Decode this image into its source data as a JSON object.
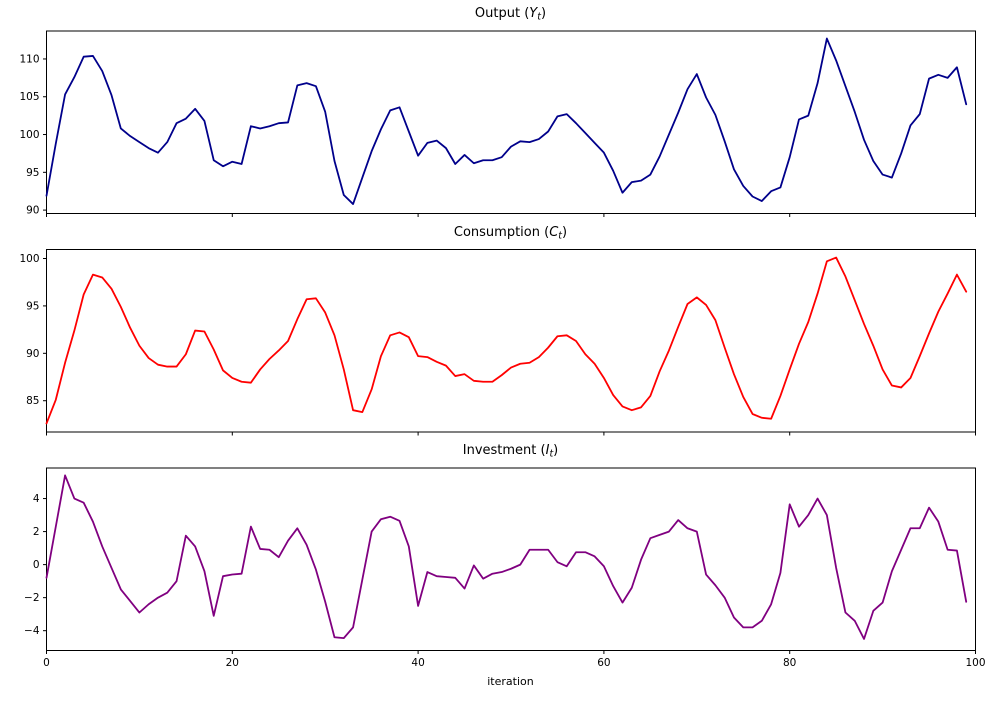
{
  "xlabel": "iteration",
  "chart_data": [
    {
      "type": "line",
      "title_pre": "Output (",
      "title_var": "Y",
      "title_sub": "t",
      "title_post": ")",
      "title_plain": "Output (Y_t)",
      "color": "#00008b",
      "xlim": [
        0,
        100
      ],
      "ylim": [
        89.55,
        113.7
      ],
      "xticks": [
        0,
        20,
        40,
        60,
        80,
        100
      ],
      "xtick_labels": [
        "0",
        "20",
        "40",
        "60",
        "80",
        "100"
      ],
      "show_xtick_labels": false,
      "yticks": [
        90,
        95,
        100,
        105,
        110
      ],
      "ytick_labels": [
        "90",
        "95",
        "100",
        "105",
        "110"
      ],
      "x_start": 0,
      "x_step": 1,
      "values": [
        91.9,
        98.8,
        105.3,
        107.6,
        110.3,
        110.4,
        108.4,
        105.2,
        100.8,
        99.8,
        99.0,
        98.2,
        97.6,
        99.0,
        101.5,
        102.1,
        103.4,
        101.8,
        96.6,
        95.8,
        96.4,
        96.1,
        101.1,
        100.8,
        101.1,
        101.5,
        101.6,
        106.5,
        106.8,
        106.4,
        103.0,
        96.5,
        92.0,
        90.8,
        94.3,
        97.8,
        100.7,
        103.2,
        103.6,
        100.4,
        97.2,
        98.9,
        99.2,
        98.2,
        96.1,
        97.3,
        96.2,
        96.6,
        96.6,
        97.0,
        98.4,
        99.1,
        99.0,
        99.4,
        100.4,
        102.4,
        102.7,
        101.5,
        100.2,
        98.9,
        97.6,
        95.2,
        92.3,
        93.7,
        93.9,
        94.7,
        97.1,
        100.0,
        102.9,
        106.0,
        108.0,
        104.9,
        102.6,
        99.1,
        95.4,
        93.2,
        91.8,
        91.2,
        92.5,
        93.0,
        97.0,
        102.0,
        102.5,
        106.8,
        112.7,
        109.8,
        106.4,
        103.0,
        99.3,
        96.5,
        94.7,
        94.3,
        97.5,
        101.2,
        102.7,
        107.4,
        107.9,
        107.5,
        108.9,
        104.0
      ]
    },
    {
      "type": "line",
      "title_pre": "Consumption (",
      "title_var": "C",
      "title_sub": "t",
      "title_post": ")",
      "title_plain": "Consumption (C_t)",
      "color": "#ff0000",
      "xlim": [
        0,
        100
      ],
      "ylim": [
        81.7,
        100.95
      ],
      "xticks": [
        0,
        20,
        40,
        60,
        80,
        100
      ],
      "xtick_labels": [
        "0",
        "20",
        "40",
        "60",
        "80",
        "100"
      ],
      "show_xtick_labels": false,
      "yticks": [
        85,
        90,
        95,
        100
      ],
      "ytick_labels": [
        "85",
        "90",
        "95",
        "100"
      ],
      "x_start": 0,
      "x_step": 1,
      "values": [
        82.6,
        85.1,
        89.0,
        92.4,
        96.2,
        98.3,
        98.0,
        96.8,
        94.9,
        92.7,
        90.8,
        89.5,
        88.8,
        88.6,
        88.6,
        89.9,
        92.4,
        92.3,
        90.4,
        88.2,
        87.4,
        87.0,
        86.9,
        88.3,
        89.4,
        90.3,
        91.3,
        93.6,
        95.7,
        95.8,
        94.3,
        91.9,
        88.3,
        84.0,
        83.8,
        86.2,
        89.7,
        91.9,
        92.2,
        91.7,
        89.7,
        89.6,
        89.1,
        88.7,
        87.6,
        87.8,
        87.1,
        87.0,
        87.0,
        87.7,
        88.5,
        88.9,
        89.0,
        89.6,
        90.6,
        91.8,
        91.9,
        91.3,
        89.9,
        88.9,
        87.4,
        85.6,
        84.4,
        84.0,
        84.3,
        85.5,
        88.1,
        90.3,
        92.8,
        95.2,
        95.9,
        95.1,
        93.5,
        90.6,
        87.8,
        85.4,
        83.6,
        83.2,
        83.1,
        85.5,
        88.3,
        91.0,
        93.3,
        96.3,
        99.7,
        100.1,
        98.1,
        95.6,
        93.1,
        90.8,
        88.3,
        86.6,
        86.4,
        87.4,
        89.7,
        92.1,
        94.4,
        96.3,
        98.3,
        96.5
      ]
    },
    {
      "type": "line",
      "title_pre": "Investment (",
      "title_var": "I",
      "title_sub": "t",
      "title_post": ")",
      "title_plain": "Investment (I_t)",
      "color": "#800080",
      "xlim": [
        0,
        100
      ],
      "ylim": [
        -5.2,
        5.85
      ],
      "xticks": [
        0,
        20,
        40,
        60,
        80,
        100
      ],
      "xtick_labels": [
        "0",
        "20",
        "40",
        "60",
        "80",
        "100"
      ],
      "show_xtick_labels": true,
      "yticks": [
        -4,
        -2,
        0,
        2,
        4
      ],
      "ytick_labels": [
        "−4",
        "−2",
        "0",
        "2",
        "4"
      ],
      "x_start": 0,
      "x_step": 1,
      "values": [
        -0.8,
        2.3,
        5.4,
        4.0,
        3.75,
        2.6,
        1.1,
        -0.2,
        -1.5,
        -2.2,
        -2.9,
        -2.4,
        -2.0,
        -1.7,
        -1.0,
        1.75,
        1.1,
        -0.4,
        -3.1,
        -0.7,
        -0.6,
        -0.55,
        2.3,
        0.95,
        0.9,
        0.45,
        1.45,
        2.2,
        1.2,
        -0.3,
        -2.25,
        -4.4,
        -4.45,
        -3.8,
        -0.9,
        2.0,
        2.75,
        2.9,
        2.65,
        1.1,
        -2.5,
        -0.45,
        -0.7,
        -0.75,
        -0.8,
        -1.45,
        -0.05,
        -0.85,
        -0.55,
        -0.45,
        -0.25,
        0.0,
        0.9,
        0.9,
        0.9,
        0.15,
        -0.1,
        0.75,
        0.75,
        0.5,
        -0.1,
        -1.3,
        -2.3,
        -1.4,
        0.3,
        1.6,
        1.8,
        2.0,
        2.7,
        2.2,
        2.0,
        -0.6,
        -1.25,
        -2.0,
        -3.2,
        -3.8,
        -3.8,
        -3.4,
        -2.4,
        -0.5,
        3.65,
        2.3,
        3.0,
        4.0,
        3.0,
        -0.2,
        -2.9,
        -3.4,
        -4.5,
        -2.8,
        -2.3,
        -0.4,
        0.9,
        2.2,
        2.2,
        3.45,
        2.6,
        0.9,
        0.85,
        -2.25
      ]
    }
  ]
}
